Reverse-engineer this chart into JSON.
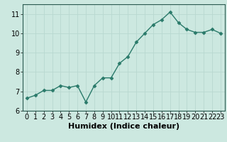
{
  "x": [
    0,
    1,
    2,
    3,
    4,
    5,
    6,
    7,
    8,
    9,
    10,
    11,
    12,
    13,
    14,
    15,
    16,
    17,
    18,
    19,
    20,
    21,
    22,
    23
  ],
  "y": [
    6.65,
    6.8,
    7.05,
    7.05,
    7.3,
    7.2,
    7.3,
    6.45,
    7.3,
    7.7,
    7.7,
    8.45,
    8.8,
    9.55,
    10.0,
    10.45,
    10.7,
    11.1,
    10.55,
    10.2,
    10.05,
    10.05,
    10.2,
    10.0
  ],
  "xlabel": "Humidex (Indice chaleur)",
  "ylim": [
    6.0,
    11.5
  ],
  "xlim": [
    -0.5,
    23.5
  ],
  "yticks": [
    6,
    7,
    8,
    9,
    10,
    11
  ],
  "xticks": [
    0,
    1,
    2,
    3,
    4,
    5,
    6,
    7,
    8,
    9,
    10,
    11,
    12,
    13,
    14,
    15,
    16,
    17,
    18,
    19,
    20,
    21,
    22,
    23
  ],
  "line_color": "#2a7a6a",
  "marker": "D",
  "marker_size": 2.5,
  "line_width": 1.0,
  "background_color": "#cce8e0",
  "grid_color": "#b8d8d0",
  "axis_label_fontsize": 8,
  "tick_fontsize": 7,
  "linestyle": "-"
}
